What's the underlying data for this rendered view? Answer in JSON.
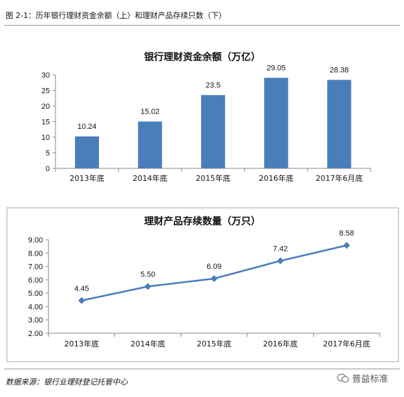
{
  "figure": {
    "title": "图 2-1：历年银行理财资金余额（上）和理财产品存续只数（下）",
    "source": "数据来源：银行业理财登记托管中心",
    "brand": "普益标准"
  },
  "chart_data": [
    {
      "type": "bar",
      "title": "银行理财资金余额（万亿）",
      "categories": [
        "2013年底",
        "2014年底",
        "2015年底",
        "2016年底",
        "2017年6月底"
      ],
      "values": [
        10.24,
        15.02,
        23.5,
        29.05,
        28.38
      ],
      "value_labels": [
        "10.24",
        "15.02",
        "23.5",
        "29.05",
        "28.38"
      ],
      "ylim": [
        0,
        30
      ],
      "yticks": [
        "0",
        "5",
        "10",
        "15",
        "20",
        "25",
        "30"
      ],
      "grid": false,
      "color": "#4a7ebb"
    },
    {
      "type": "line",
      "title": "理财产品存续数量（万只）",
      "categories": [
        "2013年底",
        "2014年底",
        "2015年底",
        "2016年底",
        "2017年6月底"
      ],
      "values": [
        4.45,
        5.5,
        6.09,
        7.42,
        8.58
      ],
      "value_labels": [
        "4.45",
        "5.50",
        "6.09",
        "7.42",
        "8.58"
      ],
      "ylim": [
        2,
        9
      ],
      "yticks": [
        "2.00",
        "3.00",
        "4.00",
        "5.00",
        "6.00",
        "7.00",
        "8.00",
        "9.00"
      ],
      "grid": false,
      "color": "#4a7ebb"
    }
  ]
}
